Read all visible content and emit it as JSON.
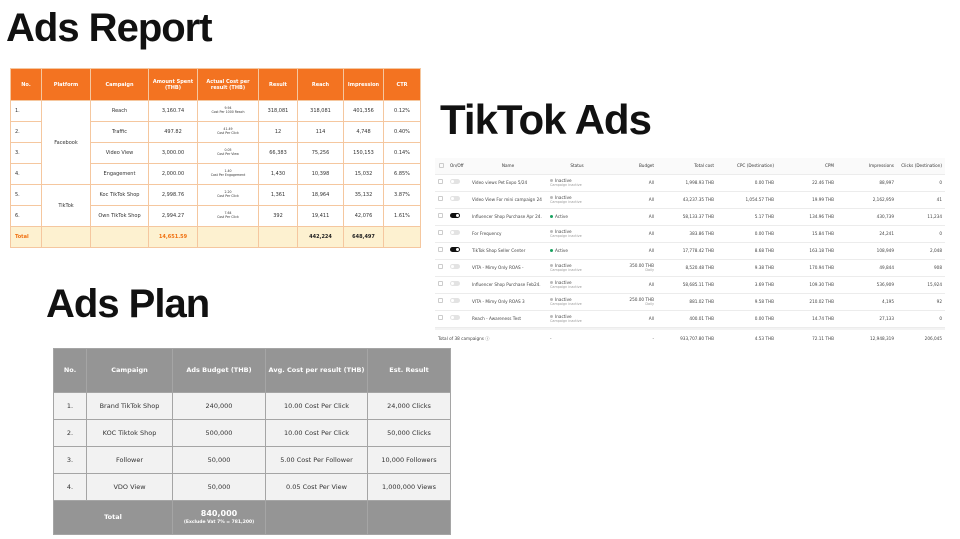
{
  "titles": {
    "report": "Ads Report",
    "tiktok": "TikTok Ads",
    "plan": "Ads Plan"
  },
  "report": {
    "headers": [
      "No.",
      "Platform",
      "Campaign",
      "Amount Spent (THB)",
      "Actual Cost per result (THB)",
      "Result",
      "Reach",
      "Impression",
      "CTR"
    ],
    "groups": [
      {
        "platform": "Facebook",
        "rows": 4
      },
      {
        "platform": "TikTok",
        "rows": 2
      }
    ],
    "rows": [
      {
        "no": "1.",
        "campaign": "Reach",
        "spent": "3,160.74",
        "cpr": "9.94",
        "cpr_unit": "Cost Per 1000 Reach",
        "result": "318,081",
        "reach": "318,081",
        "impression": "401,356",
        "ctr": "0.12%"
      },
      {
        "no": "2.",
        "campaign": "Traffic",
        "spent": "497.82",
        "cpr": "41.49",
        "cpr_unit": "Cost Per Click",
        "result": "12",
        "reach": "114",
        "impression": "4,748",
        "ctr": "0.40%"
      },
      {
        "no": "3.",
        "campaign": "Video View",
        "spent": "3,000.00",
        "cpr": "0.05",
        "cpr_unit": "Cost Per View",
        "result": "66,383",
        "reach": "75,256",
        "impression": "150,153",
        "ctr": "0.14%"
      },
      {
        "no": "4.",
        "campaign": "Engagement",
        "spent": "2,000.00",
        "cpr": "1.40",
        "cpr_unit": "Cost Per Engagement",
        "result": "1,430",
        "reach": "10,398",
        "impression": "15,032",
        "ctr": "6.85%"
      },
      {
        "no": "5.",
        "campaign": "Koc TikTok Shop",
        "spent": "2,998.76",
        "cpr": "2.20",
        "cpr_unit": "Cost Per Click",
        "result": "1,361",
        "reach": "18,964",
        "impression": "35,132",
        "ctr": "3.87%"
      },
      {
        "no": "6.",
        "campaign": "Own TikTok Shop",
        "spent": "2,994.27",
        "cpr": "7.64",
        "cpr_unit": "Cost Per Click",
        "result": "392",
        "reach": "19,411",
        "impression": "42,076",
        "ctr": "1.61%"
      }
    ],
    "total": {
      "label": "Total",
      "spent": "14,651.59",
      "reach": "442,224",
      "impression": "648,497"
    }
  },
  "tiktok": {
    "headers": [
      "On/Off",
      "Name",
      "Status",
      "Budget",
      "Total cost",
      "CPC (Destination)",
      "CPM",
      "Impressions",
      "Clicks (Destination)"
    ],
    "rows": [
      {
        "on": false,
        "name": "Video views Pet Expo 5/24",
        "status": "Inactive",
        "status_sub": "Campaign inactive",
        "budget": "All",
        "budget_sub": "",
        "cost": "1,998.93 THB",
        "cpc": "0.00 THB",
        "cpm": "22.46 THB",
        "imp": "88,997",
        "clicks": "0"
      },
      {
        "on": false,
        "name": "Video View For mini campaign 24",
        "status": "Inactive",
        "status_sub": "Campaign inactive",
        "budget": "All",
        "budget_sub": "",
        "cost": "43,237.35 THB",
        "cpc": "1,054.57 THB",
        "cpm": "19.99 THB",
        "imp": "2,162,959",
        "clicks": "41"
      },
      {
        "on": true,
        "name": "Influencer Shop Purchase Apr 24.",
        "status": "Active",
        "status_sub": "",
        "budget": "All",
        "budget_sub": "",
        "cost": "58,133.37 THB",
        "cpc": "5.17 THB",
        "cpm": "134.96 THB",
        "imp": "430,739",
        "clicks": "11,234"
      },
      {
        "on": false,
        "name": "For Frequency",
        "status": "Inactive",
        "status_sub": "Campaign inactive",
        "budget": "All",
        "budget_sub": "",
        "cost": "383.86 THB",
        "cpc": "0.00 THB",
        "cpm": "15.84 THB",
        "imp": "24,241",
        "clicks": "0"
      },
      {
        "on": true,
        "name": "TikTok Shop Seller Center",
        "status": "Active",
        "status_sub": "",
        "budget": "All",
        "budget_sub": "",
        "cost": "17,778.42 THB",
        "cpc": "8.68 THB",
        "cpm": "163.18 THB",
        "imp": "108,949",
        "clicks": "2,048"
      },
      {
        "on": false,
        "name": "VITA - Mimy Only ROAS -",
        "status": "Inactive",
        "status_sub": "Campaign inactive",
        "budget": "350.00 THB",
        "budget_sub": "Daily",
        "cost": "8,520.48 THB",
        "cpc": "9.38 THB",
        "cpm": "170.94 THB",
        "imp": "49,844",
        "clicks": "908"
      },
      {
        "on": false,
        "name": "Influencer Shop Purchase Feb24.",
        "status": "Inactive",
        "status_sub": "Campaign inactive",
        "budget": "All",
        "budget_sub": "",
        "cost": "58,685.11 THB",
        "cpc": "3.69 THB",
        "cpm": "109.30 THB",
        "imp": "536,909",
        "clicks": "15,924"
      },
      {
        "on": false,
        "name": "VITA - Mimy Only ROAS 3",
        "status": "Inactive",
        "status_sub": "Campaign inactive",
        "budget": "250.00 THB",
        "budget_sub": "Daily",
        "cost": "881.02 THB",
        "cpc": "9.58 THB",
        "cpm": "210.02 THB",
        "imp": "4,195",
        "clicks": "92"
      },
      {
        "on": false,
        "name": "Reach - Awareness Test",
        "status": "Inactive",
        "status_sub": "Campaign inactive",
        "budget": "All",
        "budget_sub": "",
        "cost": "400.01 THB",
        "cpc": "0.00 THB",
        "cpm": "14.74 THB",
        "imp": "27,133",
        "clicks": "0"
      }
    ],
    "total": {
      "label": "Total of 38 campaigns",
      "status": "-",
      "budget": "-",
      "cost": "933,707.80 THB",
      "cpc": "4.53 THB",
      "cpm": "72.11 THB",
      "imp": "12,948,319",
      "clicks": "206,045"
    }
  },
  "plan": {
    "headers": [
      "No.",
      "Campaign",
      "Ads Budget (THB)",
      "Avg. Cost per result (THB)",
      "Est. Result"
    ],
    "rows": [
      {
        "no": "1.",
        "campaign": "Brand TikTok Shop",
        "budget": "240,000",
        "cpr": "10.00 Cost Per Click",
        "est": "24,000 Clicks"
      },
      {
        "no": "2.",
        "campaign": "KOC Tiktok Shop",
        "budget": "500,000",
        "cpr": "10.00 Cost Per Click",
        "est": "50,000 Clicks"
      },
      {
        "no": "3.",
        "campaign": "Follower",
        "budget": "50,000",
        "cpr": "5.00 Cost Per Follower",
        "est": "10,000 Followers"
      },
      {
        "no": "4.",
        "campaign": "VDO View",
        "budget": "50,000",
        "cpr": "0.05 Cost Per View",
        "est": "1,000,000 Views"
      }
    ],
    "total": {
      "label": "Total",
      "budget": "840,000",
      "note": "(Exclude Vat 7% = 781,200)"
    }
  },
  "colors": {
    "orange": "#f37321",
    "gray": "#959595",
    "active": "#1aa260"
  }
}
